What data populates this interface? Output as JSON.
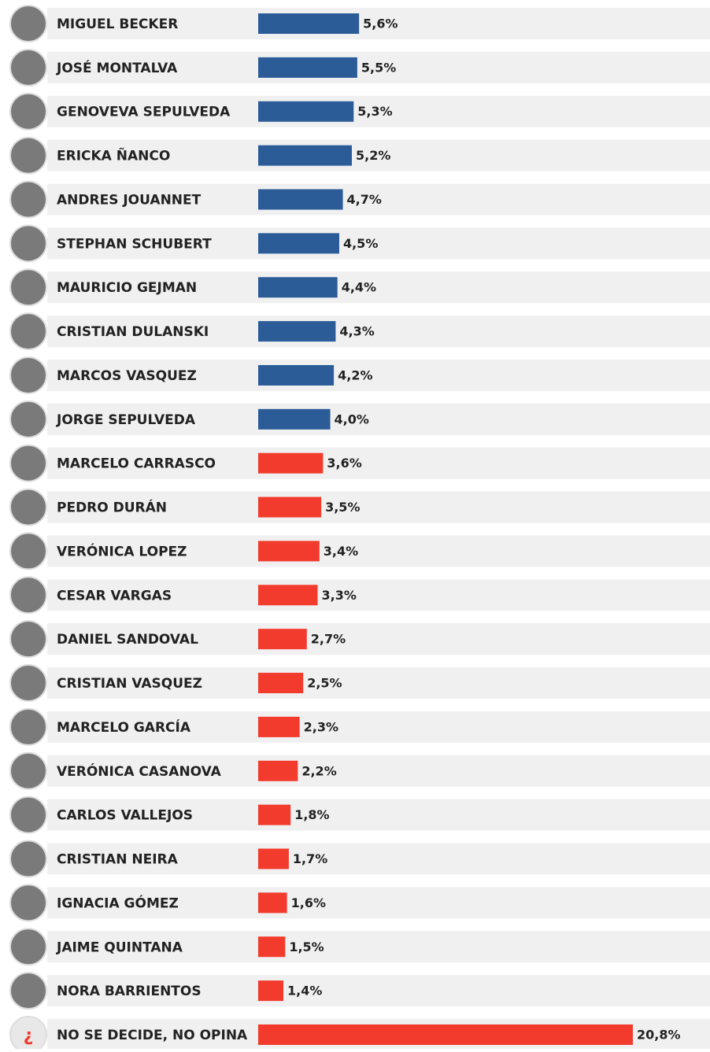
{
  "chart_data": {
    "type": "bar",
    "orientation": "horizontal",
    "categories": [
      "MIGUEL BECKER",
      "JOSÉ MONTALVA",
      "GENOVEVA SEPULVEDA",
      "ERICKA ÑANCO",
      "ANDRES JOUANNET",
      "STEPHAN SCHUBERT",
      "MAURICIO GEJMAN",
      "CRISTIAN DULANSKI",
      "MARCOS VASQUEZ",
      "JORGE SEPULVEDA",
      "MARCELO CARRASCO",
      "PEDRO DURÁN",
      "VERÓNICA LOPEZ",
      "CESAR VARGAS",
      "DANIEL SANDOVAL",
      "CRISTIAN VASQUEZ",
      "MARCELO GARCÍA",
      "VERÓNICA CASANOVA",
      "CARLOS VALLEJOS",
      "CRISTIAN NEIRA",
      "IGNACIA GÓMEZ",
      "JAIME QUINTANA",
      "NORA BARRIENTOS",
      "NO SE DECIDE, NO OPINA"
    ],
    "values": [
      5.6,
      5.5,
      5.3,
      5.2,
      4.7,
      4.5,
      4.4,
      4.3,
      4.2,
      4.0,
      3.6,
      3.5,
      3.4,
      3.3,
      2.7,
      2.5,
      2.3,
      2.2,
      1.8,
      1.7,
      1.6,
      1.5,
      1.4,
      20.8
    ],
    "value_labels": [
      "5,6%",
      "5,5%",
      "5,3%",
      "5,2%",
      "4,7%",
      "4,5%",
      "4,4%",
      "4,3%",
      "4,2%",
      "4,0%",
      "3,6%",
      "3,5%",
      "3,4%",
      "3,3%",
      "2,7%",
      "2,5%",
      "2,3%",
      "2,2%",
      "1,8%",
      "1,7%",
      "1,6%",
      "1,5%",
      "1,4%",
      "20,8%"
    ],
    "colors": [
      "#2b5c98",
      "#2b5c98",
      "#2b5c98",
      "#2b5c98",
      "#2b5c98",
      "#2b5c98",
      "#2b5c98",
      "#2b5c98",
      "#2b5c98",
      "#2b5c98",
      "#f23b2d",
      "#f23b2d",
      "#f23b2d",
      "#f23b2d",
      "#f23b2d",
      "#f23b2d",
      "#f23b2d",
      "#f23b2d",
      "#f23b2d",
      "#f23b2d",
      "#f23b2d",
      "#f23b2d",
      "#f23b2d",
      "#f23b2d"
    ],
    "undecided_icon": "¿"
  }
}
